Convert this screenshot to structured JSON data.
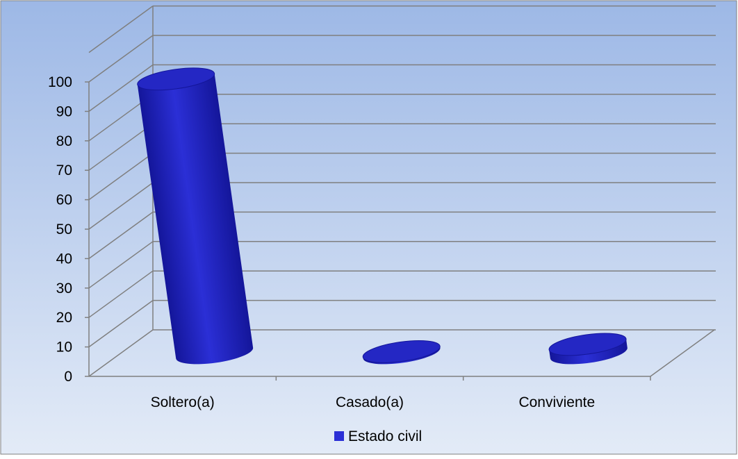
{
  "chart_data": {
    "type": "bar",
    "style": "3d-cylinder",
    "categories": [
      "Soltero(a)",
      "Casado(a)",
      "Conviviente"
    ],
    "series": [
      {
        "name": "Estado civil",
        "values": [
          94,
          0.5,
          3
        ]
      }
    ],
    "yticks": [
      "0",
      "10",
      "20",
      "30",
      "40",
      "50",
      "60",
      "70",
      "80",
      "90",
      "100"
    ],
    "ylim": [
      0,
      100
    ],
    "grid": true,
    "legend": "bottom"
  },
  "colors": {
    "bar": "#2b2fd6",
    "bar_dark": "#14169a",
    "bar_top": "#2427c4",
    "background_top": "#9db8e6",
    "background_bottom": "#e3ebf7",
    "grid": "#7f7f7f"
  }
}
